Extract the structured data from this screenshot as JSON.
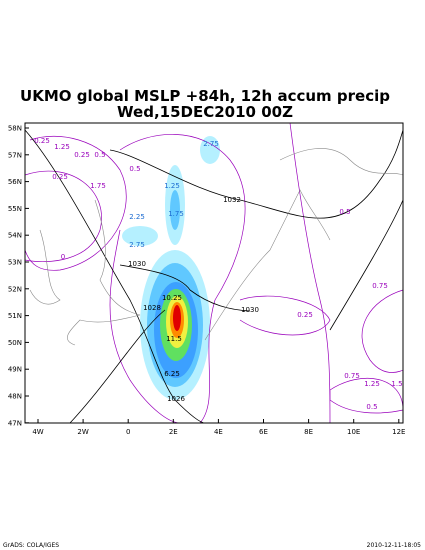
{
  "header": {
    "title": "UKMO global MSLP +84h, 12h accum precip",
    "subtitle": "Wed,15DEC2010 00Z"
  },
  "map": {
    "lat_labels": [
      "58N",
      "57N",
      "56N",
      "55N",
      "54N",
      "53N",
      "52N",
      "51N",
      "50N",
      "49N",
      "48N",
      "47N"
    ],
    "lon_labels": [
      "4W",
      "2W",
      "0",
      "2E",
      "4E",
      "6E",
      "8E",
      "10E",
      "12E"
    ],
    "contour_labels": [
      "0.25",
      "1.25",
      "0.25",
      "0.5",
      "0.25",
      "1.75",
      "0.5",
      "2.25",
      "1.75",
      "1.25",
      "2.75",
      "1032",
      "2.75",
      "1030",
      "10.25",
      "1028",
      "1030",
      "11.5",
      "6.25",
      "1026",
      "0.75",
      "0.25",
      "0.75",
      "1.25",
      "1.5",
      "0.5",
      "0",
      "0.5"
    ]
  },
  "footer": {
    "left": "GrADS: COLA/IGES",
    "right": "2010-12-11-18:05"
  }
}
